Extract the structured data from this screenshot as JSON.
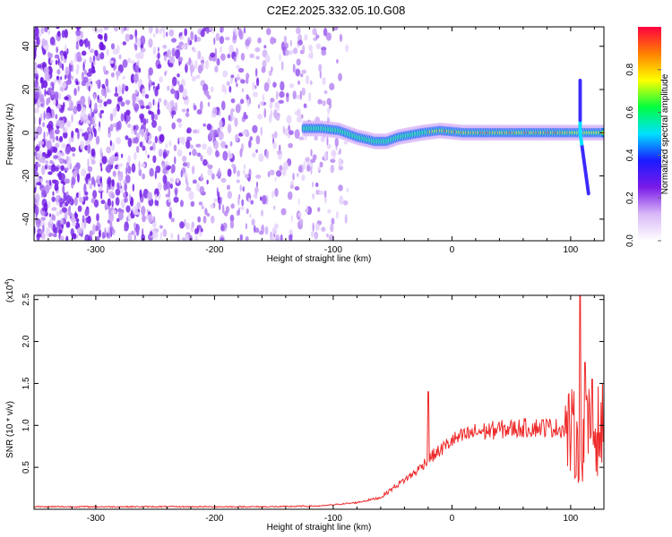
{
  "title": "C2E2.2025.332.05.10.G08",
  "chart_data": [
    {
      "type": "heatmap",
      "xlabel": "Height of straight line (km)",
      "ylabel": "Frequency (Hz)",
      "xlim": [
        -352,
        128
      ],
      "ylim": [
        -50,
        49
      ],
      "xticks": [
        -300,
        -200,
        -100,
        0,
        100
      ],
      "xtick_labels": [
        "-300",
        "-200",
        "-100",
        "0",
        "100"
      ],
      "yticks": [
        -40,
        -20,
        0,
        20,
        40
      ],
      "ytick_labels": [
        "-40",
        "-20",
        "0",
        "20",
        "40"
      ],
      "colorbar": {
        "label": "Normalized spectral amplitude",
        "range": [
          0,
          1
        ],
        "ticks": [
          0.0,
          0.2,
          0.4,
          0.6,
          0.8
        ],
        "tick_labels": [
          "0.0",
          "0.2",
          "0.4",
          "0.6",
          "0.8"
        ],
        "colors": [
          "#ffffff",
          "#d8b8f8",
          "#7a1ae8",
          "#1a1aff",
          "#00e0ff",
          "#00ff40",
          "#ffff00",
          "#ff8000",
          "#ff0040"
        ]
      },
      "noise_region_x": [
        -352,
        -110
      ],
      "ridge": [
        {
          "x": -125,
          "y": 2
        },
        {
          "x": -110,
          "y": 2
        },
        {
          "x": -95,
          "y": 1
        },
        {
          "x": -80,
          "y": -2
        },
        {
          "x": -65,
          "y": -4
        },
        {
          "x": -55,
          "y": -4
        },
        {
          "x": -45,
          "y": -2
        },
        {
          "x": -35,
          "y": -1
        },
        {
          "x": -25,
          "y": 0
        },
        {
          "x": -10,
          "y": 1
        },
        {
          "x": 10,
          "y": 0
        },
        {
          "x": 40,
          "y": 0
        },
        {
          "x": 70,
          "y": 0
        },
        {
          "x": 100,
          "y": 0
        },
        {
          "x": 110,
          "y": 0
        },
        {
          "x": 128,
          "y": 0
        }
      ],
      "grid": false
    },
    {
      "type": "line",
      "xlabel": "Height of straight line (km)",
      "ylabel": "SNR (10 * v/v)",
      "scale_label": "(x10",
      "scale_exponent": "4",
      "scale_close": ")",
      "xlim": [
        -352,
        128
      ],
      "ylim": [
        0,
        2.55
      ],
      "xticks": [
        -300,
        -200,
        -100,
        0,
        100
      ],
      "xtick_labels": [
        "-300",
        "-200",
        "-100",
        "0",
        "100"
      ],
      "yticks": [
        0.5,
        1.0,
        1.5,
        2.0,
        2.5
      ],
      "ytick_labels": [
        "0.5",
        "1.0",
        "1.5",
        "2.0",
        "2.5"
      ],
      "color": "#ee2a2a",
      "envelope": [
        {
          "x": -352,
          "y": 0.03
        },
        {
          "x": -150,
          "y": 0.03
        },
        {
          "x": -110,
          "y": 0.04
        },
        {
          "x": -80,
          "y": 0.08
        },
        {
          "x": -60,
          "y": 0.14
        },
        {
          "x": -50,
          "y": 0.25
        },
        {
          "x": -40,
          "y": 0.35
        },
        {
          "x": -30,
          "y": 0.45
        },
        {
          "x": -20,
          "y": 0.6
        },
        {
          "x": -10,
          "y": 0.7
        },
        {
          "x": 0,
          "y": 0.82
        },
        {
          "x": 20,
          "y": 0.92
        },
        {
          "x": 40,
          "y": 0.95
        },
        {
          "x": 60,
          "y": 0.97
        },
        {
          "x": 80,
          "y": 0.98
        },
        {
          "x": 95,
          "y": 0.96
        },
        {
          "x": 105,
          "y": 0.85
        },
        {
          "x": 115,
          "y": 0.9
        },
        {
          "x": 128,
          "y": 0.97
        }
      ],
      "spikes": [
        {
          "x": -20,
          "y": 1.4
        },
        {
          "x": 108,
          "y": 2.55
        },
        {
          "x": 112,
          "y": 1.75
        },
        {
          "x": 118,
          "y": 1.55
        }
      ],
      "grid": false
    }
  ]
}
